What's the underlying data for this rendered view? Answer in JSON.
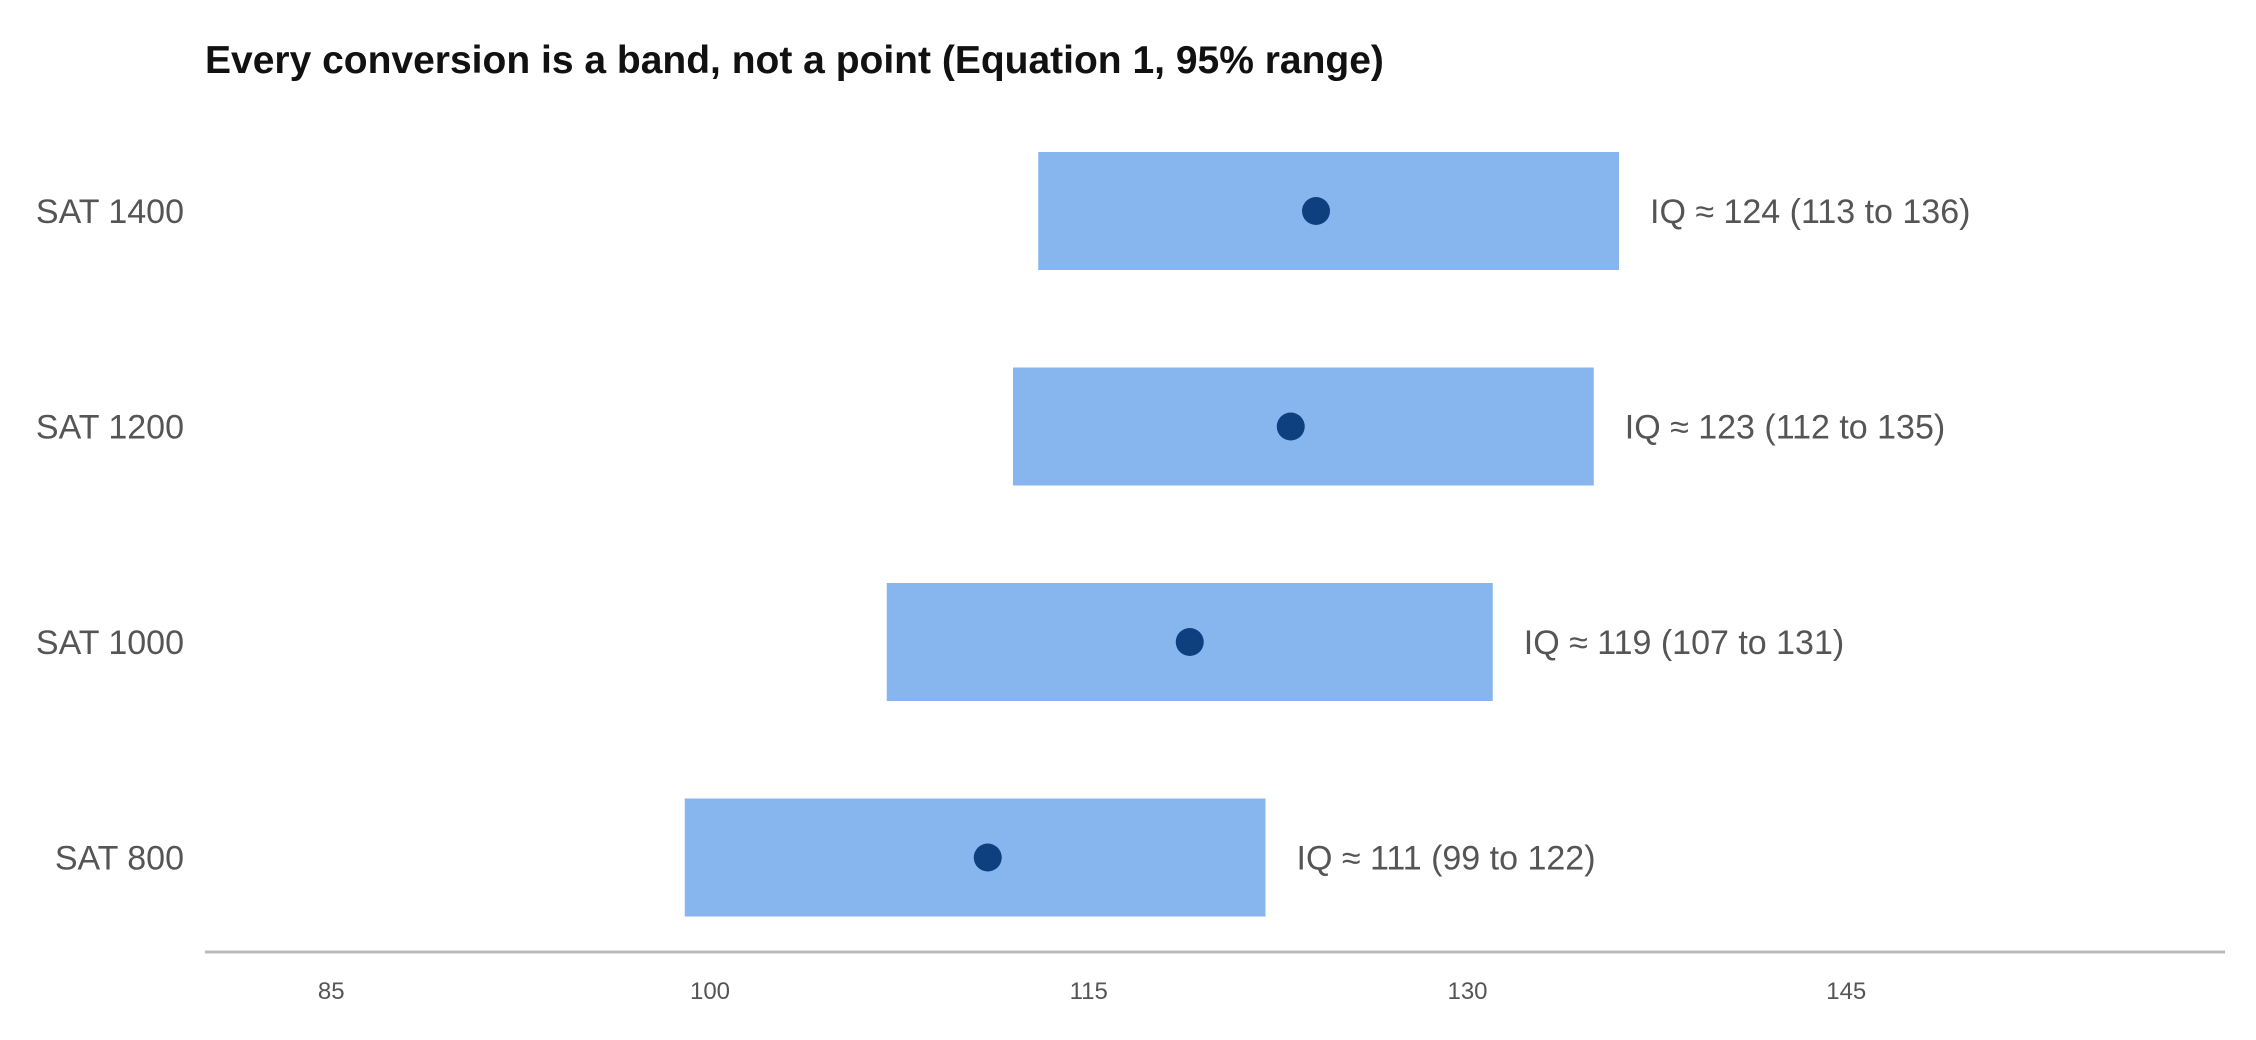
{
  "chart_data": {
    "type": "range-bar",
    "title": "Every conversion is a band, not a point (Equation 1, 95% range)",
    "xlabel": "",
    "ylabel": "",
    "xlim": [
      80,
      160
    ],
    "xticks": [
      85,
      100,
      115,
      130,
      145
    ],
    "grid": false,
    "band_color": "#87B6EF",
    "point_color": "#0E3F7E",
    "axis_color": "#BBBBBB",
    "rows": [
      {
        "category": "SAT 1400",
        "estimate": 124,
        "low": 113,
        "high": 136,
        "label": "IQ ≈ 124  (113 to 136)"
      },
      {
        "category": "SAT 1200",
        "estimate": 123,
        "low": 112,
        "high": 135,
        "label": "IQ ≈ 123  (112 to 135)"
      },
      {
        "category": "SAT 1000",
        "estimate": 119,
        "low": 107,
        "high": 131,
        "label": "IQ ≈ 119  (107 to 131)"
      },
      {
        "category": "SAT 800",
        "estimate": 111,
        "low": 99,
        "high": 122,
        "label": "IQ ≈ 111  (99 to 122)"
      }
    ]
  }
}
